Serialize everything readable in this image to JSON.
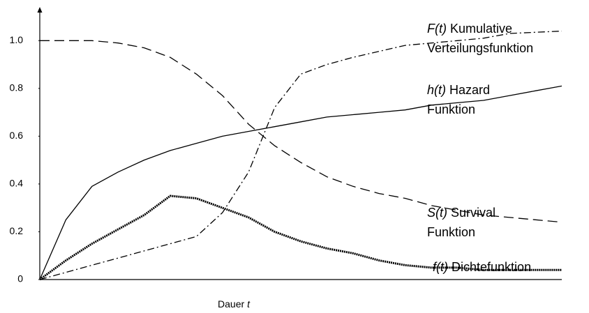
{
  "chart_data": {
    "type": "line",
    "xlabel": "Dauer",
    "xlabel_symbol": "t",
    "x": [
      0,
      0.5,
      1,
      1.5,
      2,
      2.5,
      3,
      3.5,
      4,
      4.5,
      5,
      5.5,
      6,
      6.5,
      7,
      7.5,
      8,
      8.5,
      9,
      9.5,
      10
    ],
    "xlim": [
      0,
      10
    ],
    "ylim": [
      0,
      1.1
    ],
    "yticks": [
      0,
      0.2,
      0.4,
      0.6,
      0.8,
      {
        "value": 1,
        "label": "1.0"
      }
    ],
    "series": [
      {
        "symbol": "F(t)",
        "label_lines": [
          "Kumulative",
          "Verteilungsfunktion"
        ],
        "color": "#000000",
        "style": "dashdot",
        "values": [
          0,
          0.03,
          0.06,
          0.09,
          0.12,
          0.15,
          0.18,
          0.28,
          0.45,
          0.72,
          0.86,
          0.9,
          0.93,
          0.955,
          0.98,
          0.99,
          1.0,
          1.01,
          1.03,
          1.035,
          1.04
        ]
      },
      {
        "symbol": "h(t)",
        "label_lines": [
          "Hazard",
          "Funktion"
        ],
        "color": "#000000",
        "style": "solid",
        "values": [
          0,
          0.25,
          0.39,
          0.45,
          0.5,
          0.54,
          0.57,
          0.6,
          0.62,
          0.64,
          0.66,
          0.68,
          0.69,
          0.7,
          0.71,
          0.73,
          0.74,
          0.75,
          0.77,
          0.79,
          0.81
        ]
      },
      {
        "symbol": "S(t)",
        "label_lines": [
          "Survival",
          "Funktion"
        ],
        "color": "#000000",
        "style": "dashed",
        "values": [
          1.0,
          1.0,
          1.0,
          0.99,
          0.97,
          0.93,
          0.86,
          0.77,
          0.65,
          0.56,
          0.49,
          0.43,
          0.39,
          0.36,
          0.34,
          0.31,
          0.29,
          0.27,
          0.26,
          0.25,
          0.24
        ]
      },
      {
        "symbol": "f(t)",
        "label_lines": [
          "Dichtefunktion"
        ],
        "color": "#000000",
        "style": "dotted",
        "values": [
          0,
          0.08,
          0.15,
          0.21,
          0.27,
          0.35,
          0.34,
          0.3,
          0.26,
          0.2,
          0.16,
          0.13,
          0.11,
          0.08,
          0.06,
          0.05,
          0.05,
          0.04,
          0.04,
          0.04,
          0.04
        ]
      }
    ]
  }
}
